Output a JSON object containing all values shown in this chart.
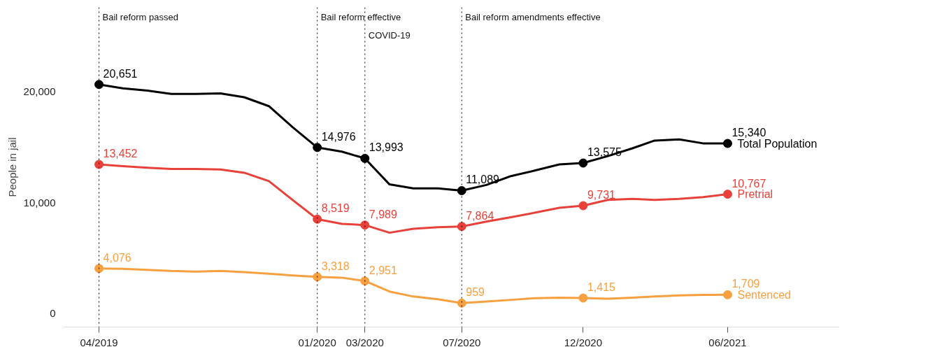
{
  "chart_data": {
    "type": "line",
    "ylabel": "People in jail",
    "x": [
      "2019-04",
      "2019-05",
      "2019-06",
      "2019-07",
      "2019-08",
      "2019-09",
      "2019-10",
      "2019-11",
      "2019-12",
      "2020-01",
      "2020-02",
      "2020-03",
      "2020-04",
      "2020-05",
      "2020-06",
      "2020-07",
      "2020-08",
      "2020-09",
      "2020-10",
      "2020-11",
      "2020-12",
      "2021-01",
      "2021-02",
      "2021-03",
      "2021-04",
      "2021-05",
      "2021-06"
    ],
    "series": [
      {
        "name": "Total Population",
        "color": "#000000",
        "values": [
          20651,
          20300,
          20100,
          19800,
          19800,
          19850,
          19500,
          18700,
          16800,
          14976,
          14600,
          13993,
          11650,
          11300,
          11300,
          11089,
          11600,
          12400,
          12900,
          13450,
          13575,
          14200,
          14900,
          15600,
          15700,
          15350,
          15340
        ],
        "value_labels": [
          "20,651",
          null,
          null,
          null,
          null,
          null,
          null,
          null,
          null,
          "14,976",
          null,
          "13,993",
          null,
          null,
          null,
          "11,089",
          null,
          null,
          null,
          null,
          "13,575",
          null,
          null,
          null,
          null,
          null,
          "15,340"
        ]
      },
      {
        "name": "Pretrial",
        "color": "#e8413a",
        "values": [
          13452,
          13300,
          13150,
          13050,
          13050,
          13000,
          12700,
          11950,
          10250,
          8519,
          8100,
          7989,
          7300,
          7650,
          7800,
          7864,
          8300,
          8700,
          9100,
          9550,
          9731,
          10250,
          10350,
          10250,
          10350,
          10500,
          10767
        ],
        "value_labels": [
          "13,452",
          null,
          null,
          null,
          null,
          null,
          null,
          null,
          null,
          "8,519",
          null,
          "7,989",
          null,
          null,
          null,
          "7,864",
          null,
          null,
          null,
          null,
          "9,731",
          null,
          null,
          null,
          null,
          null,
          "10,767"
        ]
      },
      {
        "name": "Sentenced",
        "color": "#f7a040",
        "values": [
          4076,
          4050,
          3950,
          3850,
          3800,
          3850,
          3750,
          3600,
          3450,
          3318,
          3250,
          2951,
          2000,
          1550,
          1300,
          959,
          1100,
          1250,
          1400,
          1450,
          1415,
          1350,
          1450,
          1550,
          1650,
          1700,
          1709
        ],
        "value_labels": [
          "4,076",
          null,
          null,
          null,
          null,
          null,
          null,
          null,
          null,
          "3,318",
          null,
          "2,951",
          null,
          null,
          null,
          "959",
          null,
          null,
          null,
          null,
          "1,415",
          null,
          null,
          null,
          null,
          null,
          "1,709"
        ]
      }
    ],
    "xlim": [
      "2019-02-15",
      "2021-10-20"
    ],
    "xticks": [
      {
        "value": "2019-04",
        "label": "04/2019"
      },
      {
        "value": "2020-01",
        "label": "01/2020"
      },
      {
        "value": "2020-03",
        "label": "03/2020"
      },
      {
        "value": "2020-07",
        "label": "07/2020"
      },
      {
        "value": "2020-12",
        "label": "12/2020"
      },
      {
        "value": "2021-06",
        "label": "06/2021"
      }
    ],
    "ylim": [
      -1200,
      27600
    ],
    "yticks": [
      0,
      {
        "value": 10000,
        "label": "10,000"
      },
      {
        "value": 20000,
        "label": "20,000"
      }
    ],
    "ref_lines": [
      {
        "axis": "x",
        "value": "2019-04",
        "label": "Bail reform passed",
        "color": "#000000",
        "line_style": "dotted"
      },
      {
        "axis": "x",
        "value": "2020-01",
        "label": "Bail reform effective",
        "color": "#000000",
        "line_style": "dotted"
      },
      {
        "axis": "x",
        "value": "2020-03",
        "label": "COVID-19",
        "color": "#000000",
        "line_style": "dotted"
      },
      {
        "axis": "x",
        "value": "2020-07",
        "label": "Bail reform amendments effective",
        "color": "#000000",
        "line_style": "dotted"
      }
    ],
    "grid": false,
    "legend": false,
    "line_style": "solid"
  }
}
